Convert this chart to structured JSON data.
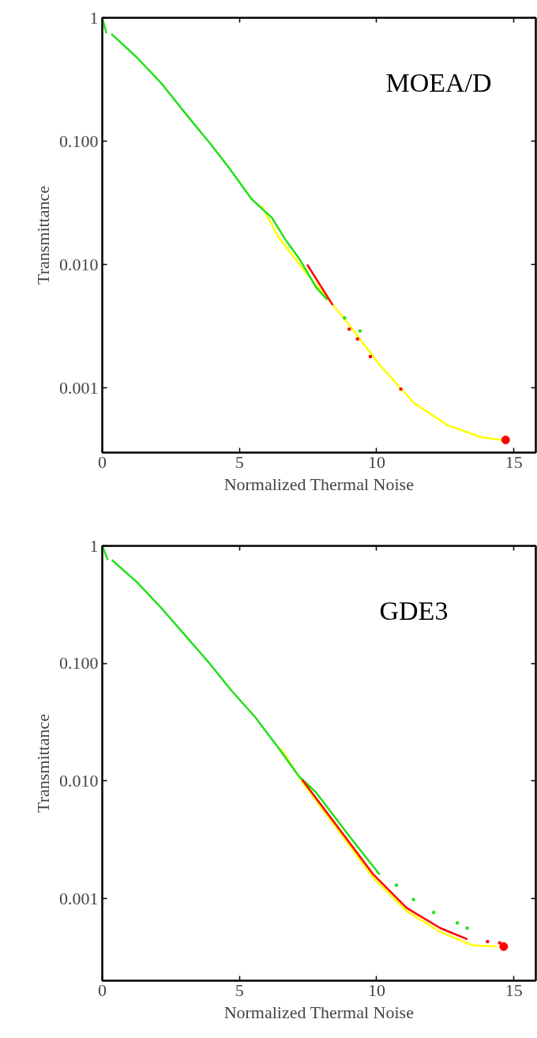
{
  "chart_data": [
    {
      "type": "line",
      "annotations": [
        "MOEA/D"
      ],
      "xlabel": "Normalized Thermal Noise",
      "ylabel": "Transmittance",
      "log": "y",
      "grid": false,
      "marker": "none",
      "line_style": "solid",
      "xlim": [
        0,
        15.8
      ],
      "ylim": [
        0.0003,
        1
      ],
      "xticks": [
        0,
        5,
        10,
        15
      ],
      "yticks": [
        {
          "value": 1,
          "label": "1"
        },
        {
          "value": 0.1,
          "label": "0.100"
        },
        {
          "value": 0.01,
          "label": "0.010"
        },
        {
          "value": 0.001,
          "label": "0.001"
        }
      ],
      "series": [
        {
          "color": "#ffff00",
          "x": [
            5.8,
            6.43,
            7.41,
            8.89,
            10.1,
            11.35,
            12.58,
            13.8,
            14.56
          ],
          "values": [
            0.03,
            0.0166,
            0.0087,
            0.0035,
            0.00155,
            0.00076,
            0.0005,
            0.0004,
            0.00038
          ]
        },
        {
          "color": "#22e01a",
          "x": [
            0,
            0.15,
            0.25,
            0.33,
            1.25,
            2.18,
            3.04,
            3.96,
            4.64,
            5.44,
            6.18,
            6.67,
            7.2,
            7.8,
            8.2
          ],
          "values": [
            1,
            0.75,
            null,
            0.74,
            0.48,
            0.29,
            0.167,
            0.094,
            0.06,
            0.034,
            0.024,
            0.016,
            0.011,
            0.0065,
            0.0052
          ]
        },
        {
          "type": "scatter",
          "marker": "square",
          "color": "#22e01a",
          "x": [
            8.83,
            9.39
          ],
          "values": [
            0.0037,
            0.0029
          ]
        },
        {
          "color": "#ff0000",
          "x": [
            7.47,
            8.4
          ],
          "values": [
            0.01,
            0.0047
          ]
        },
        {
          "type": "scatter",
          "marker": "square",
          "color": "#ff0000",
          "x": [
            9.0,
            9.3,
            9.77,
            10.88
          ],
          "values": [
            0.003,
            0.0025,
            0.0018,
            0.00098
          ]
        },
        {
          "type": "scatter",
          "marker": "circle",
          "color": "#ff0000",
          "x": [
            14.7
          ],
          "values": [
            0.00038
          ]
        }
      ]
    },
    {
      "type": "line",
      "annotations": [
        "GDE3"
      ],
      "xlabel": "Normalized Thermal Noise",
      "ylabel": "Transmittance",
      "log": "y",
      "grid": false,
      "marker": "none",
      "line_style": "solid",
      "xlim": [
        0,
        15.8
      ],
      "ylim": [
        0.0002,
        1
      ],
      "xticks": [
        0,
        5,
        10,
        15
      ],
      "yticks": [
        {
          "value": 1,
          "label": "1"
        },
        {
          "value": 0.1,
          "label": "0.100"
        },
        {
          "value": 0.01,
          "label": "0.010"
        },
        {
          "value": 0.001,
          "label": "0.001"
        }
      ],
      "series": [
        {
          "color": "#ffff00",
          "x": [
            6.5,
            7.29,
            8.64,
            9.88,
            11.1,
            12.32,
            13.5,
            14.4
          ],
          "values": [
            0.019,
            0.0098,
            0.0037,
            0.0015,
            0.00078,
            0.00052,
            0.0004,
            0.00039
          ]
        },
        {
          "color": "#22e01a",
          "x": [
            0,
            0.2,
            0.27,
            0.35,
            1.27,
            2.13,
            3.05,
            3.91,
            4.7,
            5.57,
            6.43,
            7.16,
            7.77,
            9.0,
            10.11
          ],
          "values": [
            1,
            0.76,
            null,
            0.76,
            0.49,
            0.3,
            0.17,
            0.1,
            0.059,
            0.035,
            0.019,
            0.011,
            0.0081,
            0.0034,
            0.0016
          ]
        },
        {
          "type": "scatter",
          "marker": "square",
          "color": "#22e01a",
          "x": [
            10.72,
            11.34,
            12.08,
            12.94,
            13.3
          ],
          "values": [
            0.0013,
            0.00098,
            0.00076,
            0.00062,
            0.00056
          ]
        },
        {
          "color": "#ff0000",
          "x": [
            7.29,
            8.64,
            9.88,
            11.1,
            12.32,
            13.31
          ],
          "values": [
            0.0102,
            0.0039,
            0.0016,
            0.00083,
            0.00056,
            0.00045
          ]
        },
        {
          "type": "scatter",
          "marker": "square",
          "color": "#ff0000",
          "x": [
            14.04,
            14.48
          ],
          "values": [
            0.00043,
            0.00042
          ]
        },
        {
          "type": "scatter",
          "marker": "circle",
          "color": "#ff0000",
          "x": [
            14.63
          ],
          "values": [
            0.00039
          ]
        }
      ]
    }
  ]
}
